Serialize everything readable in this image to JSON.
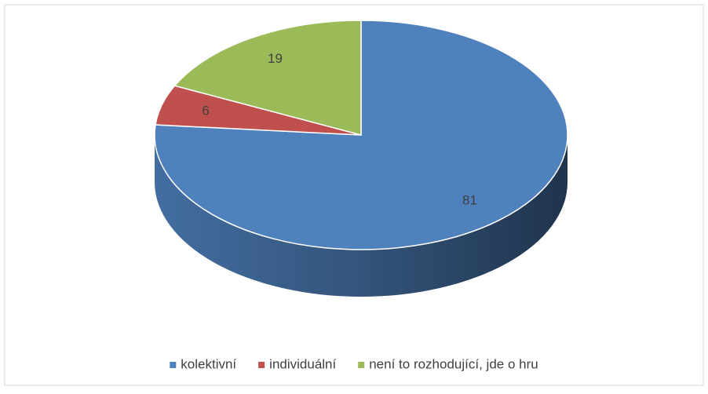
{
  "chart_data": {
    "type": "pie",
    "categories": [
      "kolektivní",
      "individuální",
      "není to rozhodující, jde o hru"
    ],
    "values": [
      81,
      6,
      19
    ],
    "colors": [
      "#4f81bd",
      "#c0504d",
      "#9bbb59"
    ],
    "legend": "bottom"
  }
}
